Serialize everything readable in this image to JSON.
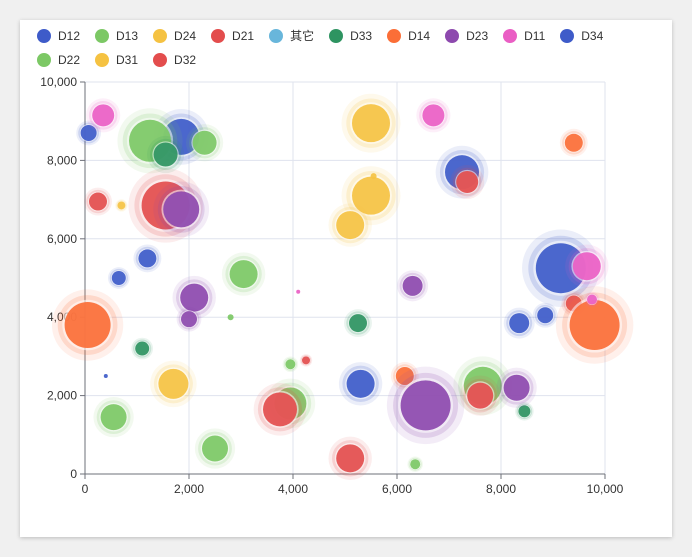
{
  "chart_data": {
    "type": "scatter",
    "title": "",
    "xlabel": "",
    "ylabel": "",
    "xlim": [
      0,
      10000
    ],
    "ylim": [
      0,
      10000
    ],
    "x_ticks": [
      "0",
      "2,000",
      "4,000",
      "6,000",
      "8,000",
      "10,000"
    ],
    "y_ticks": [
      "0",
      "2,000",
      "4,000",
      "6,000",
      "8,000",
      "10,000"
    ],
    "grid": true,
    "legend_position": "top",
    "series": [
      {
        "name": "D12",
        "color": "#3e5bc9",
        "points": [
          [
            70,
            8700,
            16
          ],
          [
            1200,
            5500,
            18
          ],
          [
            650,
            5000,
            14
          ],
          [
            1850,
            8600,
            36
          ],
          [
            7250,
            7700,
            34
          ],
          [
            9150,
            5250,
            50
          ],
          [
            8350,
            3850,
            20
          ],
          [
            8850,
            4050,
            16
          ],
          [
            5300,
            2300,
            28
          ],
          [
            400,
            2500,
            4
          ]
        ]
      },
      {
        "name": "D13",
        "color": "#7cc865",
        "points": [
          [
            1250,
            8500,
            42
          ],
          [
            2300,
            8450,
            24
          ],
          [
            3050,
            5100,
            28
          ],
          [
            550,
            1450,
            26
          ],
          [
            2500,
            650,
            26
          ],
          [
            3950,
            1800,
            32
          ],
          [
            7650,
            2250,
            38
          ],
          [
            6350,
            250,
            10
          ],
          [
            2800,
            4000,
            6
          ],
          [
            3950,
            2800,
            10
          ]
        ]
      },
      {
        "name": "D24",
        "color": "#f5c242",
        "points": [
          [
            5500,
            8950,
            38
          ],
          [
            5500,
            7100,
            38
          ],
          [
            5100,
            6350,
            28
          ],
          [
            1700,
            2300,
            30
          ],
          [
            700,
            6850,
            8
          ],
          [
            5550,
            7600,
            6
          ]
        ]
      },
      {
        "name": "D21",
        "color": "#e34d4d",
        "points": [
          [
            250,
            6950,
            18
          ],
          [
            1550,
            6850,
            48
          ],
          [
            3750,
            1650,
            34
          ],
          [
            5100,
            400,
            28
          ],
          [
            7350,
            7450,
            22
          ],
          [
            9400,
            4350,
            16
          ],
          [
            7600,
            2000,
            26
          ],
          [
            4250,
            2900,
            8
          ]
        ]
      },
      {
        "name": "其它",
        "color": "#68b6db",
        "points": []
      },
      {
        "name": "D33",
        "color": "#2e9461",
        "points": [
          [
            1550,
            8150,
            24
          ],
          [
            5250,
            3850,
            18
          ],
          [
            1100,
            3200,
            14
          ],
          [
            8450,
            1600,
            12
          ]
        ]
      },
      {
        "name": "D14",
        "color": "#fb6e37",
        "points": [
          [
            50,
            3800,
            46
          ],
          [
            9400,
            8450,
            18
          ],
          [
            9800,
            3800,
            50
          ],
          [
            6150,
            2500,
            18
          ]
        ]
      },
      {
        "name": "D23",
        "color": "#8d49ae",
        "points": [
          [
            1850,
            6750,
            36
          ],
          [
            2100,
            4500,
            28
          ],
          [
            2000,
            3950,
            16
          ],
          [
            6300,
            4800,
            20
          ],
          [
            6550,
            1750,
            50
          ],
          [
            8300,
            2200,
            26
          ]
        ]
      },
      {
        "name": "D11",
        "color": "#ea5ec4",
        "points": [
          [
            350,
            9150,
            22
          ],
          [
            6700,
            9150,
            22
          ],
          [
            9650,
            5300,
            28
          ],
          [
            9750,
            4450,
            10
          ],
          [
            4100,
            4650,
            4
          ]
        ]
      },
      {
        "name": "D34",
        "color": "#3e5bc9",
        "points": []
      },
      {
        "name": "D22",
        "color": "#7cc865",
        "points": []
      },
      {
        "name": "D31",
        "color": "#f5c242",
        "points": []
      },
      {
        "name": "D32",
        "color": "#e34d4d",
        "points": []
      }
    ]
  }
}
